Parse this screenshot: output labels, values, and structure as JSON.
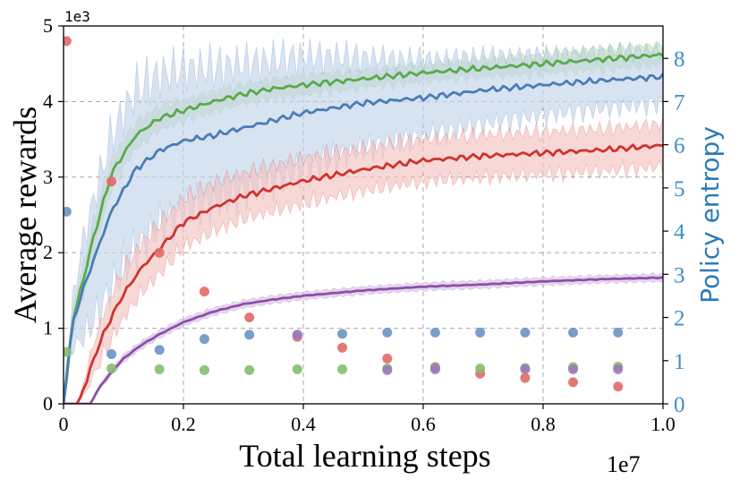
{
  "chart_data": {
    "type": "line",
    "xlabel": "Total learning steps",
    "ylabel": "Average rewards",
    "y2label": "Policy entropy",
    "x_range": [
      0,
      1.0
    ],
    "x_multiplier": "1e7",
    "ylim": [
      0,
      5
    ],
    "y_multiplier": "1e3",
    "y2lim": [
      0,
      8.75
    ],
    "x_ticks": [
      "0",
      "0.2",
      "0.4",
      "0.6",
      "0.8",
      "1.0"
    ],
    "y_ticks": [
      "0",
      "1",
      "2",
      "3",
      "4",
      "5"
    ],
    "y2_ticks": [
      "0",
      "1",
      "2",
      "3",
      "4",
      "5",
      "6",
      "7",
      "8"
    ],
    "grid": true,
    "line_series": [
      {
        "name": "green",
        "color": "#5aaa4a",
        "band_color": "#c6e2b8",
        "x": [
          0,
          0.015,
          0.03,
          0.05,
          0.08,
          0.12,
          0.16,
          0.2,
          0.25,
          0.3,
          0.35,
          0.4,
          0.5,
          0.6,
          0.7,
          0.8,
          0.9,
          1.0
        ],
        "y": [
          0,
          1.1,
          1.55,
          2.2,
          3.05,
          3.55,
          3.78,
          3.88,
          4.0,
          4.1,
          4.17,
          4.22,
          4.3,
          4.38,
          4.44,
          4.5,
          4.56,
          4.62
        ],
        "band_width": [
          0,
          0.15,
          0.2,
          0.22,
          0.2,
          0.18,
          0.16,
          0.14,
          0.14,
          0.13,
          0.13,
          0.13,
          0.12,
          0.12,
          0.12,
          0.13,
          0.14,
          0.14
        ]
      },
      {
        "name": "blue",
        "color": "#4a7db8",
        "band_color": "#c3d4ea",
        "x": [
          0,
          0.015,
          0.03,
          0.05,
          0.08,
          0.12,
          0.16,
          0.2,
          0.25,
          0.3,
          0.35,
          0.4,
          0.5,
          0.6,
          0.7,
          0.8,
          0.9,
          1.0
        ],
        "y": [
          0,
          1.05,
          1.45,
          1.9,
          2.55,
          3.1,
          3.35,
          3.48,
          3.55,
          3.65,
          3.75,
          3.85,
          3.98,
          4.05,
          4.15,
          4.22,
          4.28,
          4.33
        ],
        "band_width": [
          0,
          0.3,
          0.6,
          0.8,
          1.0,
          1.05,
          1.0,
          0.95,
          0.9,
          0.85,
          0.8,
          0.75,
          0.6,
          0.5,
          0.45,
          0.4,
          0.38,
          0.35
        ]
      },
      {
        "name": "red",
        "color": "#d0332d",
        "band_color": "#f3c3c1",
        "x": [
          0,
          0.025,
          0.04,
          0.06,
          0.08,
          0.1,
          0.13,
          0.16,
          0.2,
          0.25,
          0.3,
          0.35,
          0.4,
          0.5,
          0.6,
          0.7,
          0.8,
          0.9,
          1.0
        ],
        "y": [
          0,
          0,
          0.35,
          0.8,
          1.15,
          1.45,
          1.8,
          2.05,
          2.4,
          2.6,
          2.75,
          2.85,
          2.95,
          3.1,
          3.22,
          3.28,
          3.32,
          3.36,
          3.42
        ],
        "band_width": [
          0,
          0,
          0.15,
          0.25,
          0.3,
          0.32,
          0.33,
          0.33,
          0.32,
          0.32,
          0.3,
          0.3,
          0.3,
          0.28,
          0.28,
          0.28,
          0.28,
          0.28,
          0.28
        ]
      },
      {
        "name": "purple",
        "color": "#8c4fa8",
        "band_color": "#d9c4e6",
        "x": [
          0,
          0.045,
          0.06,
          0.08,
          0.1,
          0.13,
          0.16,
          0.2,
          0.25,
          0.3,
          0.35,
          0.4,
          0.5,
          0.6,
          0.7,
          0.8,
          0.9,
          1.0
        ],
        "y": [
          0,
          0,
          0.22,
          0.42,
          0.6,
          0.78,
          0.92,
          1.08,
          1.22,
          1.32,
          1.38,
          1.43,
          1.5,
          1.55,
          1.58,
          1.62,
          1.65,
          1.67
        ],
        "band_width": [
          0,
          0,
          0.03,
          0.04,
          0.05,
          0.05,
          0.05,
          0.05,
          0.05,
          0.05,
          0.05,
          0.05,
          0.05,
          0.05,
          0.05,
          0.05,
          0.05,
          0.05
        ]
      }
    ],
    "entropy_scatter": [
      {
        "name": "red entropy",
        "color": "#e06a66",
        "x": [
          0.005,
          0.08,
          0.16,
          0.235,
          0.31,
          0.39,
          0.465,
          0.54,
          0.62,
          0.695,
          0.77,
          0.85,
          0.925
        ],
        "y": [
          8.4,
          5.15,
          3.5,
          2.6,
          2.0,
          1.55,
          1.3,
          1.05,
          0.85,
          0.7,
          0.6,
          0.5,
          0.4
        ]
      },
      {
        "name": "blue entropy",
        "color": "#6c93c4",
        "x": [
          0.005,
          0.08,
          0.16,
          0.235,
          0.31,
          0.39,
          0.465,
          0.54,
          0.62,
          0.695,
          0.77,
          0.85,
          0.925
        ],
        "y": [
          4.45,
          1.15,
          1.25,
          1.5,
          1.6,
          1.6,
          1.62,
          1.65,
          1.65,
          1.65,
          1.65,
          1.65,
          1.65
        ]
      },
      {
        "name": "green entropy",
        "color": "#84bd70",
        "x": [
          0.005,
          0.08,
          0.16,
          0.235,
          0.31,
          0.39,
          0.465,
          0.54,
          0.62,
          0.695,
          0.77,
          0.85,
          0.925
        ],
        "y": [
          1.2,
          0.82,
          0.8,
          0.78,
          0.78,
          0.8,
          0.8,
          0.82,
          0.82,
          0.82,
          0.83,
          0.85,
          0.86
        ]
      },
      {
        "name": "purple entropy",
        "color": "#a079bd",
        "x": [
          0.39,
          0.54,
          0.62,
          0.77,
          0.85,
          0.925
        ],
        "y": [
          1.6,
          0.78,
          0.8,
          0.8,
          0.8,
          0.8
        ]
      }
    ]
  }
}
